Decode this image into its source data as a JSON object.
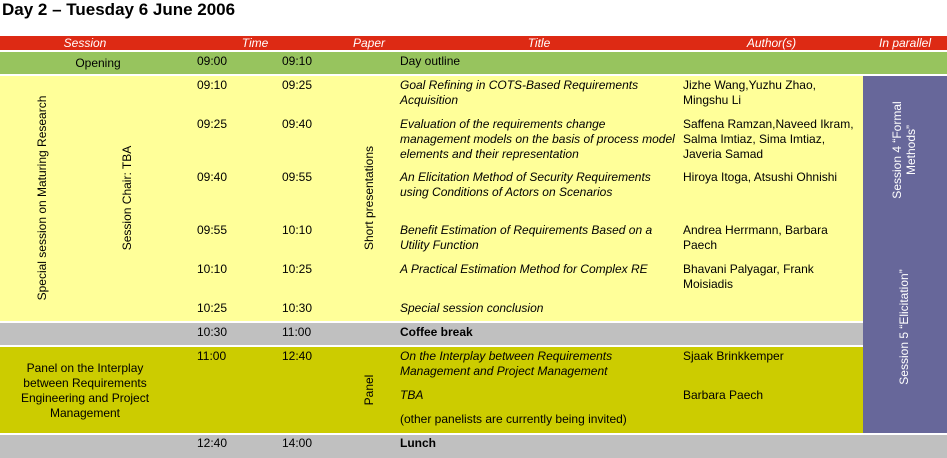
{
  "page": {
    "title": "Day 2 – Tuesday 6 June 2006"
  },
  "headers": {
    "session": "Session",
    "time": "Time",
    "paper": "Paper",
    "title": "Title",
    "authors": "Author(s)",
    "parallel": "In parallel"
  },
  "opening": {
    "label": "Opening",
    "start": "09:00",
    "end": "09:10",
    "title": "Day outline"
  },
  "special_session": {
    "name": "Special session on Maturing Research",
    "chair": "Session Chair: TBA",
    "paper_type": "Short presentations",
    "talks": [
      {
        "start": "09:10",
        "end": "09:25",
        "title": "Goal Refining in COTS-Based Requirements Acquisition",
        "authors": "Jizhe Wang,Yuzhu Zhao, Mingshu Li"
      },
      {
        "start": "09:25",
        "end": "09:40",
        "title": "Evaluation of the requirements change management models on the basis of process model elements and their representation",
        "authors": "Saffena Ramzan,Naveed Ikram, Salma Imtiaz, Sima Imtiaz, Javeria Samad"
      },
      {
        "start": "09:40",
        "end": "09:55",
        "title": "An Elicitation Method of Security Requirements using Conditions of Actors on Scenarios",
        "authors": "Hiroya Itoga, Atsushi Ohnishi"
      },
      {
        "start": "09:55",
        "end": "10:10",
        "title": "Benefit Estimation of Requirements Based on a Utility Function",
        "authors": "Andrea Herrmann, Barbara Paech"
      },
      {
        "start": "10:10",
        "end": "10:25",
        "title": "A Practical Estimation Method for Complex RE",
        "authors": "Bhavani Palyagar, Frank Moisiadis"
      },
      {
        "start": "10:25",
        "end": "10:30",
        "title": "Special session conclusion",
        "authors": ""
      }
    ]
  },
  "coffee": {
    "start": "10:30",
    "end": "11:00",
    "title": "Coffee break"
  },
  "panel": {
    "name": "Panel on the Interplay between Requirements Engineering and Project Management",
    "start": "11:00",
    "end": "12:40",
    "paper_type": "Panel",
    "title1": "On the Interplay between Requirements Management and Project Management",
    "authors1": "Sjaak Brinkkemper",
    "title2": "TBA",
    "authors2": "Barbara Paech",
    "note": "(other panelists are currently being invited)"
  },
  "lunch": {
    "start": "12:40",
    "end": "14:00",
    "title": "Lunch"
  },
  "parallel": {
    "session4": "Session 4 “Formal Methods”",
    "session5": "Session 5 “Elicitation”"
  }
}
